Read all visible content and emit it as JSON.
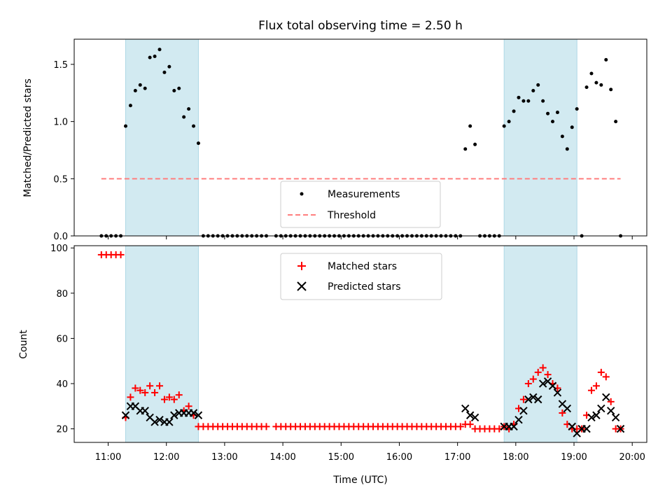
{
  "chart_data": [
    {
      "type": "scatter",
      "title": "Flux total observing time = 2.50 h",
      "xlabel": "",
      "ylabel": "Matched/Predicted stars",
      "xlim": [
        "10:25",
        "20:15"
      ],
      "ylim": [
        0,
        1.72
      ],
      "yticks": [
        0.0,
        0.5,
        1.0,
        1.5
      ],
      "ytick_labels": [
        "0.0",
        "0.5",
        "1.0",
        "1.5"
      ],
      "legend_position": "lower-center",
      "shaded_intervals": [
        [
          "11:18",
          "12:33"
        ],
        [
          "17:48",
          "19:03"
        ]
      ],
      "colors": {
        "measurements": "#000000",
        "threshold": "#ff7f7f",
        "shade": "#add8e6"
      },
      "series": [
        {
          "name": "Measurements",
          "marker": "dot",
          "x": [
            "10:53",
            "10:58",
            "11:03",
            "11:08",
            "11:13",
            "11:18",
            "11:23",
            "11:28",
            "11:33",
            "11:38",
            "11:43",
            "11:48",
            "11:53",
            "11:58",
            "12:03",
            "12:08",
            "12:13",
            "12:18",
            "12:23",
            "12:28",
            "12:33",
            "12:38",
            "12:43",
            "12:48",
            "12:53",
            "12:58",
            "13:03",
            "13:08",
            "13:13",
            "13:18",
            "13:23",
            "13:28",
            "13:33",
            "13:38",
            "13:43",
            "13:53",
            "13:58",
            "14:03",
            "14:08",
            "14:13",
            "14:18",
            "14:23",
            "14:28",
            "14:33",
            "14:38",
            "14:43",
            "14:48",
            "14:53",
            "14:58",
            "15:03",
            "15:08",
            "15:13",
            "15:18",
            "15:23",
            "15:28",
            "15:33",
            "15:38",
            "15:43",
            "15:48",
            "15:53",
            "15:58",
            "16:03",
            "16:08",
            "16:13",
            "16:18",
            "16:23",
            "16:28",
            "16:33",
            "16:38",
            "16:43",
            "16:48",
            "16:53",
            "16:58",
            "17:03",
            "17:08",
            "17:13",
            "17:18",
            "17:23",
            "17:28",
            "17:33",
            "17:38",
            "17:43",
            "17:48",
            "17:53",
            "17:58",
            "18:03",
            "18:08",
            "18:13",
            "18:18",
            "18:23",
            "18:28",
            "18:33",
            "18:38",
            "18:43",
            "18:48",
            "18:53",
            "18:58",
            "19:03",
            "19:08",
            "19:13",
            "19:18",
            "19:23",
            "19:28",
            "19:33",
            "19:38",
            "19:43",
            "19:48"
          ],
          "y": [
            0,
            0,
            0,
            0,
            0,
            0.96,
            1.14,
            1.27,
            1.32,
            1.29,
            1.56,
            1.57,
            1.63,
            1.43,
            1.48,
            1.27,
            1.29,
            1.04,
            1.11,
            0.96,
            0.81,
            0,
            0,
            0,
            0,
            0,
            0,
            0,
            0,
            0,
            0,
            0,
            0,
            0,
            0,
            0,
            0,
            0,
            0,
            0,
            0,
            0,
            0,
            0,
            0,
            0,
            0,
            0,
            0,
            0,
            0,
            0,
            0,
            0,
            0,
            0,
            0,
            0,
            0,
            0,
            0,
            0,
            0,
            0,
            0,
            0,
            0,
            0,
            0,
            0,
            0,
            0,
            0,
            0,
            0.76,
            0.96,
            0.8,
            0,
            0,
            0,
            0,
            0,
            0.96,
            1.0,
            1.09,
            1.21,
            1.18,
            1.18,
            1.27,
            1.32,
            1.18,
            1.07,
            1.0,
            1.08,
            0.87,
            0.76,
            0.95,
            1.11,
            0,
            1.3,
            1.42,
            1.34,
            1.32,
            1.54,
            1.28,
            1.0,
            0
          ]
        },
        {
          "name": "Threshold",
          "marker": "dashed-line",
          "x": [
            "10:53",
            "19:48"
          ],
          "y": [
            0.5,
            0.5
          ]
        }
      ]
    },
    {
      "type": "scatter",
      "title": "",
      "xlabel": "Time (UTC)",
      "ylabel": "Count",
      "xlim": [
        "10:25",
        "20:15"
      ],
      "ylim": [
        14,
        101
      ],
      "yticks": [
        20,
        40,
        60,
        80,
        100
      ],
      "ytick_labels": [
        "20",
        "40",
        "60",
        "80",
        "100"
      ],
      "xticks": [
        "11:00",
        "12:00",
        "13:00",
        "14:00",
        "15:00",
        "16:00",
        "17:00",
        "18:00",
        "19:00",
        "20:00"
      ],
      "xtick_labels": [
        "11:00",
        "12:00",
        "13:00",
        "14:00",
        "15:00",
        "16:00",
        "17:00",
        "18:00",
        "19:00",
        "20:00"
      ],
      "legend_position": "upper-center",
      "shaded_intervals": [
        [
          "11:18",
          "12:33"
        ],
        [
          "17:48",
          "19:03"
        ]
      ],
      "colors": {
        "matched": "#ff0000",
        "predicted": "#000000",
        "shade": "#add8e6"
      },
      "series": [
        {
          "name": "Matched stars",
          "marker": "plus",
          "x": [
            "10:53",
            "10:58",
            "11:03",
            "11:08",
            "11:13",
            "11:18",
            "11:23",
            "11:28",
            "11:33",
            "11:38",
            "11:43",
            "11:48",
            "11:53",
            "11:58",
            "12:03",
            "12:08",
            "12:13",
            "12:18",
            "12:23",
            "12:28",
            "12:33",
            "12:38",
            "12:43",
            "12:48",
            "12:53",
            "12:58",
            "13:03",
            "13:08",
            "13:13",
            "13:18",
            "13:23",
            "13:28",
            "13:33",
            "13:38",
            "13:43",
            "13:53",
            "13:58",
            "14:03",
            "14:08",
            "14:13",
            "14:18",
            "14:23",
            "14:28",
            "14:33",
            "14:38",
            "14:43",
            "14:48",
            "14:53",
            "14:58",
            "15:03",
            "15:08",
            "15:13",
            "15:18",
            "15:23",
            "15:28",
            "15:33",
            "15:38",
            "15:43",
            "15:48",
            "15:53",
            "15:58",
            "16:03",
            "16:08",
            "16:13",
            "16:18",
            "16:23",
            "16:28",
            "16:33",
            "16:38",
            "16:43",
            "16:48",
            "16:53",
            "16:58",
            "17:03",
            "17:08",
            "17:13",
            "17:18",
            "17:23",
            "17:28",
            "17:33",
            "17:38",
            "17:43",
            "17:48",
            "17:53",
            "17:58",
            "18:03",
            "18:08",
            "18:13",
            "18:18",
            "18:23",
            "18:28",
            "18:33",
            "18:38",
            "18:43",
            "18:48",
            "18:53",
            "18:58",
            "19:03",
            "19:08",
            "19:13",
            "19:18",
            "19:23",
            "19:28",
            "19:33",
            "19:38",
            "19:43",
            "19:48"
          ],
          "y": [
            97,
            97,
            97,
            97,
            97,
            25,
            34,
            38,
            37,
            36,
            39,
            36,
            39,
            33,
            34,
            33,
            35,
            28,
            30,
            26,
            21,
            21,
            21,
            21,
            21,
            21,
            21,
            21,
            21,
            21,
            21,
            21,
            21,
            21,
            21,
            21,
            21,
            21,
            21,
            21,
            21,
            21,
            21,
            21,
            21,
            21,
            21,
            21,
            21,
            21,
            21,
            21,
            21,
            21,
            21,
            21,
            21,
            21,
            21,
            21,
            21,
            21,
            21,
            21,
            21,
            21,
            21,
            21,
            21,
            21,
            21,
            21,
            21,
            21,
            22,
            22,
            20,
            20,
            20,
            20,
            20,
            20,
            21,
            20,
            22,
            29,
            33,
            40,
            42,
            45,
            47,
            44,
            40,
            38,
            27,
            22,
            20,
            20,
            20,
            26,
            37,
            39,
            45,
            43,
            32,
            20,
            20
          ]
        },
        {
          "name": "Predicted stars",
          "marker": "x",
          "x": [
            "11:18",
            "11:23",
            "11:28",
            "11:33",
            "11:38",
            "11:43",
            "11:48",
            "11:53",
            "11:58",
            "12:03",
            "12:08",
            "12:13",
            "12:18",
            "12:23",
            "12:28",
            "12:33",
            "17:08",
            "17:13",
            "17:18",
            "17:48",
            "17:53",
            "17:58",
            "18:03",
            "18:08",
            "18:13",
            "18:18",
            "18:23",
            "18:28",
            "18:33",
            "18:38",
            "18:43",
            "18:48",
            "18:53",
            "18:58",
            "19:03",
            "19:08",
            "19:13",
            "19:18",
            "19:23",
            "19:28",
            "19:33",
            "19:38",
            "19:43",
            "19:48"
          ],
          "y": [
            26,
            30,
            30,
            28,
            28,
            25,
            23,
            24,
            23,
            23,
            26,
            27,
            27,
            27,
            27,
            26,
            29,
            26,
            25,
            21,
            21,
            21,
            24,
            28,
            33,
            34,
            33,
            40,
            41,
            39,
            36,
            31,
            29,
            21,
            18,
            20,
            20,
            25,
            26,
            29,
            34,
            28,
            25,
            20
          ]
        }
      ]
    }
  ]
}
